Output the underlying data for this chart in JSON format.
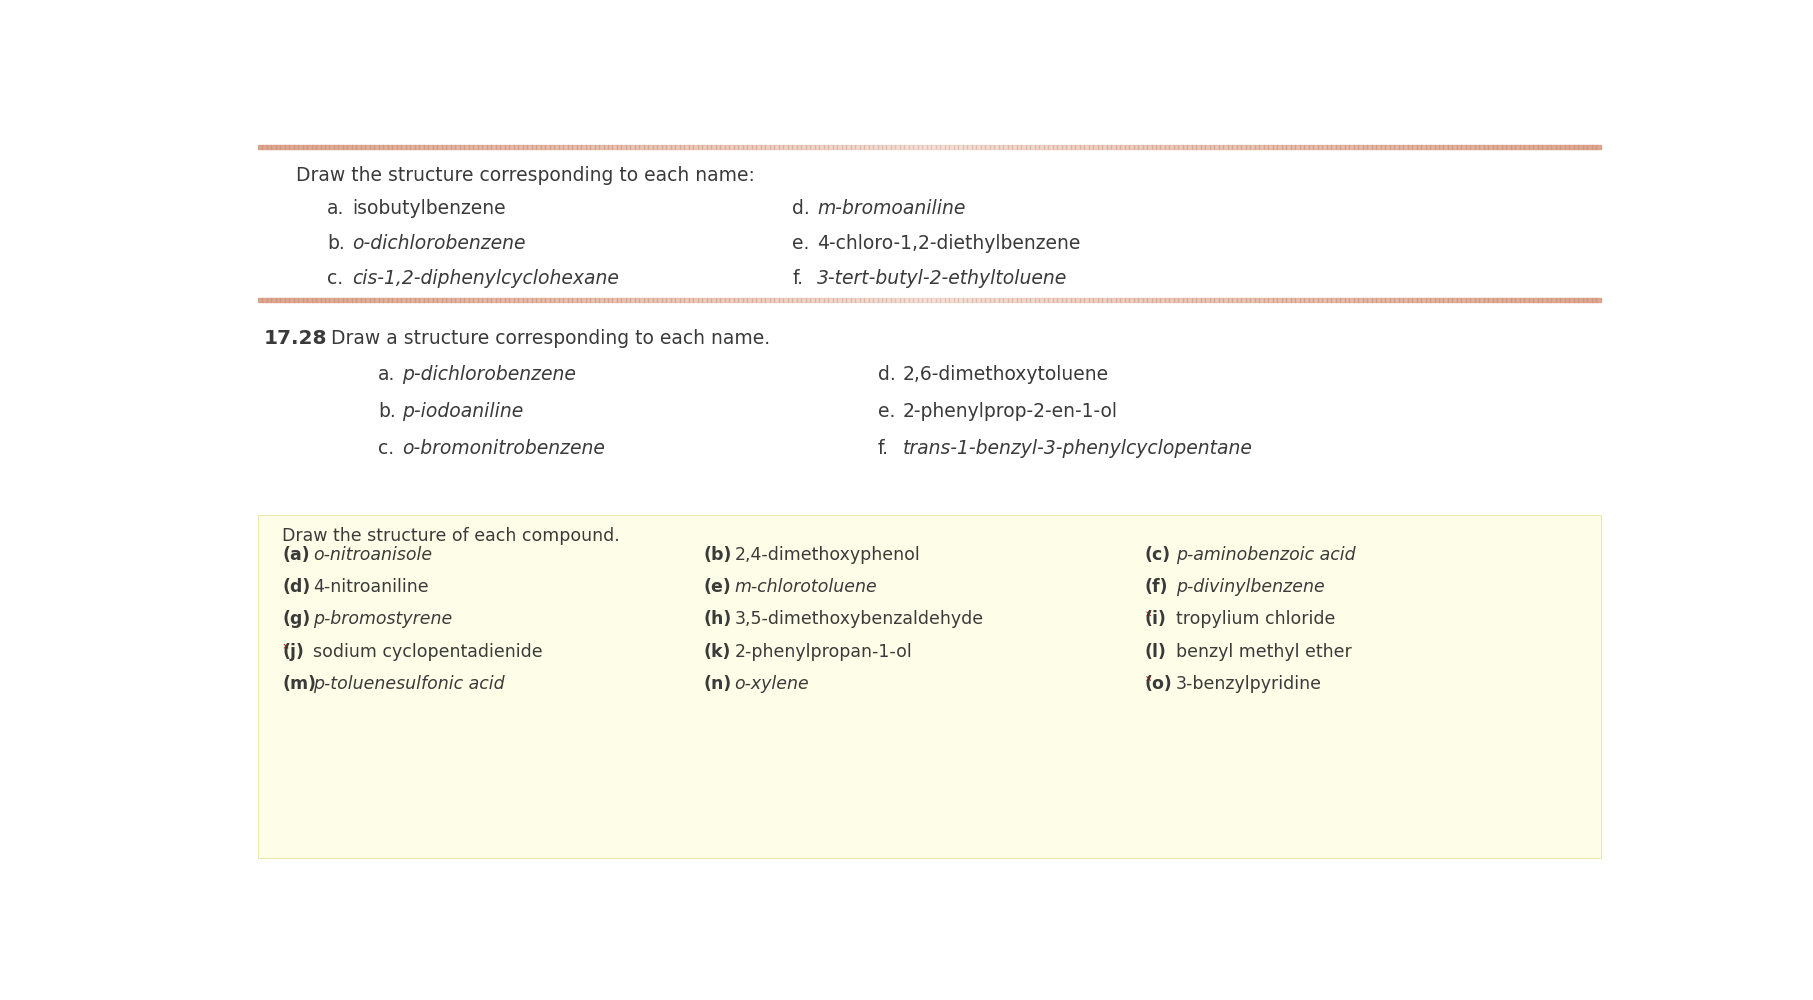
{
  "bg_color": "#ffffff",
  "salmon_color": "#d4957a",
  "yellow_box_color": "#fefee8",
  "yellow_box_edge": "#e8e8b0",
  "text_color": "#3a3a3a",
  "section1_header": "Draw the structure corresponding to each name:",
  "section1_left": [
    [
      "a.",
      "isobutylbenzene",
      false
    ],
    [
      "b.",
      "o-dichlorobenzene",
      true
    ],
    [
      "c.",
      "cis-1,2-diphenylcyclohexane",
      true
    ]
  ],
  "section1_right": [
    [
      "d.",
      "m-bromoaniline",
      true
    ],
    [
      "e.",
      "4-chloro-1,2-diethylbenzene",
      false
    ],
    [
      "f.",
      "3-tert-butyl-2-ethyltoluene",
      true
    ]
  ],
  "section2_num": "17.28",
  "section2_header": "Draw a structure corresponding to each name.",
  "section2_left": [
    [
      "a.",
      "p-dichlorobenzene",
      true
    ],
    [
      "b.",
      "p-iodoaniline",
      true
    ],
    [
      "c.",
      "o-bromonitrobenzene",
      true
    ]
  ],
  "section2_right": [
    [
      "d.",
      "2,6-dimethoxytoluene",
      false
    ],
    [
      "e.",
      "2-phenylprop-2-en-1-ol",
      false
    ],
    [
      "f.",
      "trans-1-benzyl-3-phenylcyclopentane",
      true
    ]
  ],
  "section3_header": "Draw the structure of each compound.",
  "section3_col1": [
    [
      "(a)",
      "o-nitroanisole",
      true,
      false
    ],
    [
      "(d)",
      "4-nitroaniline",
      false,
      false
    ],
    [
      "(g)",
      "p-bromostyrene",
      true,
      false
    ],
    [
      "(j)",
      "sodium cyclopentadienide",
      false,
      true
    ],
    [
      "(m)",
      "p-toluenesulfonic acid",
      true,
      false
    ]
  ],
  "section3_col2": [
    [
      "(b)",
      "2,4-dimethoxyphenol",
      false,
      false
    ],
    [
      "(e)",
      "m-chlorotoluene",
      true,
      false
    ],
    [
      "(h)",
      "3,5-dimethoxybenzaldehyde",
      false,
      false
    ],
    [
      "(k)",
      "2-phenylpropan-1-ol",
      false,
      false
    ],
    [
      "(n)",
      "o-xylene",
      true,
      false
    ]
  ],
  "section3_col3": [
    [
      "(c)",
      "p-aminobenzoic acid",
      true,
      false
    ],
    [
      "(f)",
      "p-divinylbenzene",
      true,
      false
    ],
    [
      "(i)",
      "tropylium chloride",
      false,
      true
    ],
    [
      "(l)",
      "benzyl methyl ether",
      false,
      false
    ],
    [
      "(o)",
      "3-benzylpyridine",
      false,
      true
    ]
  ]
}
